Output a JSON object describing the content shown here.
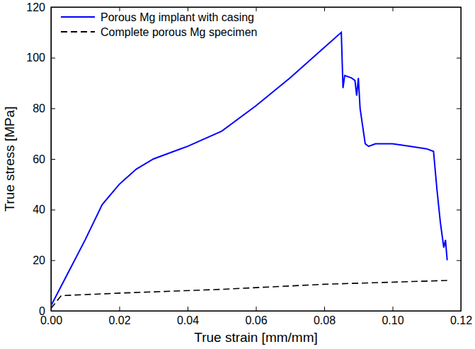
{
  "chart_data": {
    "type": "line",
    "x_label": "True strain [mm/mm]",
    "y_label": "True stress [MPa]",
    "xlim": [
      0,
      0.12
    ],
    "xticks": [
      {
        "value": 0,
        "label": "0.00"
      },
      {
        "value": 0.02,
        "label": "0.02"
      },
      {
        "value": 0.04,
        "label": "0.04"
      },
      {
        "value": 0.06,
        "label": "0.06"
      },
      {
        "value": 0.08,
        "label": "0.08"
      },
      {
        "value": 0.1,
        "label": "0.10"
      },
      {
        "value": 0.12,
        "label": "0.12"
      }
    ],
    "ylim": [
      0,
      120
    ],
    "yticks": [
      0,
      20,
      40,
      60,
      80,
      100,
      120
    ],
    "grid": false,
    "legend": "upper left",
    "series": [
      {
        "name": "Porous Mg implant with casing",
        "color": "#0000ff",
        "line_style": "solid",
        "x": [
          0,
          0.005,
          0.01,
          0.015,
          0.02,
          0.025,
          0.03,
          0.04,
          0.05,
          0.06,
          0.07,
          0.08,
          0.085,
          0.0855,
          0.086,
          0.088,
          0.089,
          0.0895,
          0.09,
          0.0905,
          0.092,
          0.093,
          0.095,
          0.1,
          0.105,
          0.11,
          0.112,
          0.113,
          0.114,
          0.1145,
          0.115,
          0.1155,
          0.116
        ],
        "values": [
          2,
          15,
          28,
          42,
          50,
          56,
          60,
          65,
          71,
          81,
          92,
          104,
          110,
          88,
          93,
          92,
          91,
          85,
          92,
          80,
          66,
          65,
          66,
          66,
          65,
          64,
          63,
          48,
          35,
          30,
          25,
          28,
          20
        ]
      },
      {
        "name": "Complete porous Mg specimen",
        "color": "#000000",
        "line_style": "dashed",
        "x": [
          0,
          0.003,
          0.02,
          0.05,
          0.08,
          0.116
        ],
        "values": [
          1,
          6,
          7,
          8.5,
          10.5,
          12
        ]
      }
    ]
  }
}
